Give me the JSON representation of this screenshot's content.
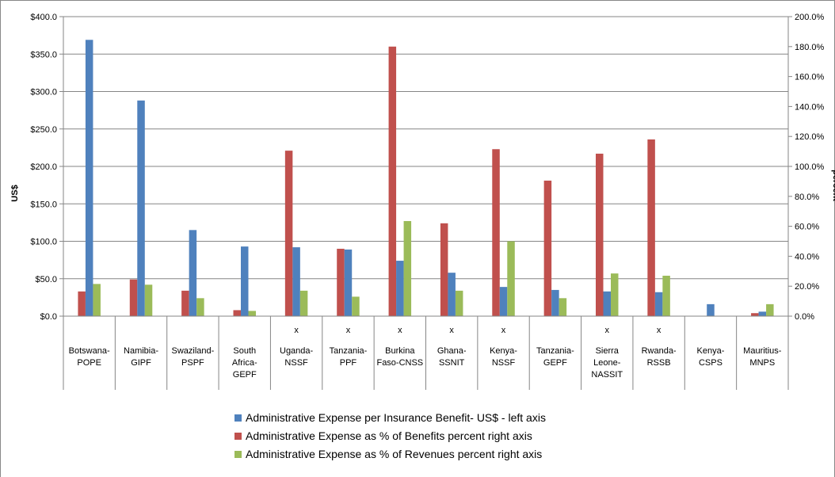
{
  "chart_data": {
    "type": "bar",
    "categories": [
      [
        "Botswana-",
        "POPE"
      ],
      [
        "Namibia-",
        "GIPF"
      ],
      [
        "Swaziland-",
        "PSPF"
      ],
      [
        "South",
        "Africa-",
        "GEPF"
      ],
      [
        "Uganda-",
        "NSSF"
      ],
      [
        "Tanzania-",
        "PPF"
      ],
      [
        "Burkina",
        "Faso-CNSS"
      ],
      [
        "Ghana-",
        "SSNIT"
      ],
      [
        "Kenya-",
        "NSSF"
      ],
      [
        "Tanzania-",
        "GEPF"
      ],
      [
        "Sierra",
        "Leone-",
        "NASSIT"
      ],
      [
        "Rwanda-",
        "RSSB"
      ],
      [
        "Kenya-",
        "CSPS"
      ],
      [
        "Mauritius-",
        "MNPS"
      ]
    ],
    "markers": [
      "",
      "",
      "",
      "",
      "x",
      "x",
      "x",
      "x",
      "x",
      "",
      "x",
      "x",
      "",
      ""
    ],
    "series": [
      {
        "name": "Administrative Expense per Insurance Benefit-  US$ -  left axis",
        "axis": "left",
        "color": "#4f81bd",
        "values": [
          369,
          288,
          115,
          93,
          92,
          89,
          74,
          58,
          39,
          35,
          33,
          32,
          16,
          6
        ]
      },
      {
        "name": "Administrative Expense as % of Benefits percent right axis",
        "axis": "right",
        "color": "#c0504d",
        "values": [
          16.5,
          24.5,
          17,
          4,
          110.5,
          45,
          180,
          62,
          111.5,
          90.5,
          108.5,
          118,
          0,
          2
        ]
      },
      {
        "name": "Administrative Expense as % of Revenues percent right axis",
        "axis": "right",
        "color": "#9bbb59",
        "values": [
          21.5,
          21,
          12,
          3.5,
          17,
          13,
          63.5,
          17,
          50,
          12,
          28.5,
          27,
          0,
          8
        ]
      }
    ],
    "left_axis": {
      "label": "US$",
      "ylim": [
        0,
        400
      ],
      "ticks": [
        "$0.0",
        "$50.0",
        "$100.0",
        "$150.0",
        "$200.0",
        "$250.0",
        "$300.0",
        "$350.0",
        "$400.0"
      ]
    },
    "right_axis": {
      "label": "percent",
      "ylim": [
        0,
        200
      ],
      "ticks": [
        "0.0%",
        "20.0%",
        "40.0%",
        "60.0%",
        "80.0%",
        "100.0%",
        "120.0%",
        "140.0%",
        "160.0%",
        "180.0%",
        "200.0%"
      ]
    },
    "grid": true,
    "legend_position": "bottom"
  }
}
